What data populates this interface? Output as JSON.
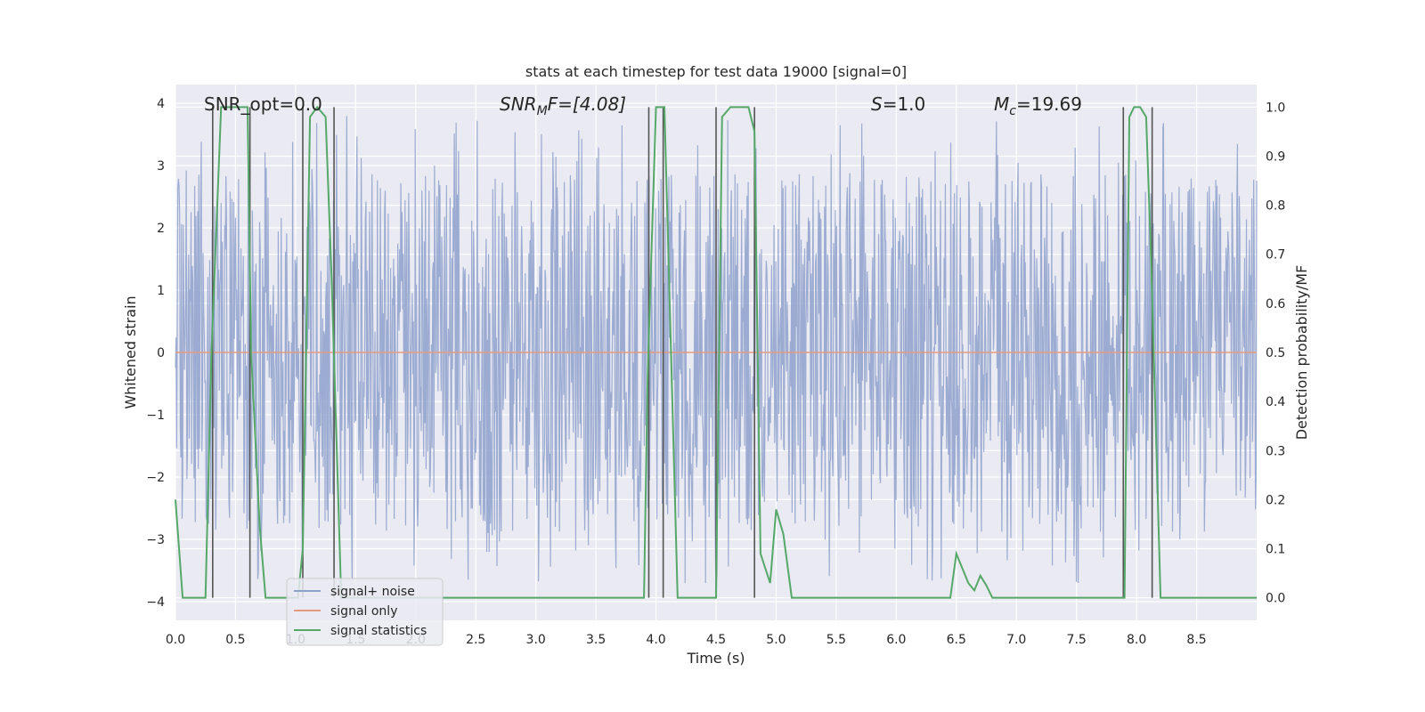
{
  "chart_data": {
    "type": "line",
    "title": "stats at each timestep for test data 19000 [signal=0]",
    "xlabel": "Time (s)",
    "ylabel": "Whitened strain",
    "ylabel_right": "Detection probability/MF",
    "xlim": [
      0.0,
      9.0
    ],
    "ylim": [
      -4.3,
      4.3
    ],
    "ylim_right": [
      -0.046,
      1.046
    ],
    "xticks": [
      0.0,
      0.5,
      1.0,
      1.5,
      2.0,
      2.5,
      3.0,
      3.5,
      4.0,
      4.5,
      5.0,
      5.5,
      6.0,
      6.5,
      7.0,
      7.5,
      8.0,
      8.5
    ],
    "xtick_labels": [
      "0.0",
      "0.5",
      "1.0",
      "1.5",
      "2.0",
      "2.5",
      "3.0",
      "3.5",
      "4.0",
      "4.5",
      "5.0",
      "5.5",
      "6.0",
      "6.5",
      "7.0",
      "7.5",
      "8.0",
      "8.5"
    ],
    "yticks": [
      4,
      3,
      2,
      1,
      0,
      -1,
      -2,
      -3,
      -4
    ],
    "ytick_labels": [
      "4",
      "3",
      "2",
      "1",
      "0",
      "−1",
      "−2",
      "−3",
      "−4"
    ],
    "yticks_right": [
      1.0,
      0.9,
      0.8,
      0.7,
      0.6,
      0.5,
      0.4,
      0.3,
      0.2,
      0.1,
      0.0
    ],
    "ytick_labels_right": [
      "1.0",
      "0.9",
      "0.8",
      "0.7",
      "0.6",
      "0.5",
      "0.4",
      "0.3",
      "0.2",
      "0.1",
      "0.0"
    ],
    "annotations": {
      "snr_opt": "SNR_opt=0.0",
      "snr_mf_prefix": "SNR",
      "snr_mf_sub": "M",
      "snr_mf_suffix": "F=[4.08]",
      "s_prefix": "S",
      "s_suffix": "=1.0",
      "mc_prefix": "M",
      "mc_sub": "c",
      "mc_suffix": "=19.69"
    },
    "legend": {
      "position": "lower-left",
      "entries": [
        "signal+ noise",
        "signal only",
        "signal statistics"
      ]
    },
    "series": [
      {
        "name": "signal+ noise",
        "axis": "left",
        "color": "#8da0cb",
        "style": "noise",
        "n_samples": 1800,
        "core_amplitude": 1.6,
        "max_amplitude": 3.8,
        "min_value": -3.7
      },
      {
        "name": "signal only",
        "axis": "left",
        "color": "#e59a7f",
        "x": [
          0.0,
          9.0
        ],
        "y": [
          0.0,
          0.0
        ]
      },
      {
        "name": "signal statistics",
        "axis": "right",
        "color": "#55a868",
        "x": [
          0.0,
          0.06,
          0.25,
          0.3,
          0.38,
          0.42,
          0.5,
          0.6,
          0.63,
          0.7,
          0.75,
          1.02,
          1.06,
          1.12,
          1.18,
          1.25,
          1.3,
          1.38,
          1.45,
          3.9,
          3.93,
          4.0,
          4.07,
          4.18,
          4.5,
          4.55,
          4.62,
          4.7,
          4.77,
          4.82,
          4.87,
          4.95,
          5.0,
          5.06,
          5.13,
          6.2,
          6.3,
          6.45,
          6.5,
          6.6,
          6.65,
          6.7,
          6.75,
          6.8,
          6.85,
          7.9,
          7.94,
          7.98,
          8.03,
          8.08,
          8.12,
          8.2,
          9.0
        ],
        "y": [
          0.2,
          0.0,
          0.0,
          0.5,
          1.0,
          1.0,
          1.0,
          1.0,
          0.5,
          0.15,
          0.0,
          0.0,
          0.1,
          0.98,
          1.0,
          0.98,
          0.65,
          0.0,
          0.0,
          0.0,
          0.45,
          1.0,
          1.0,
          0.0,
          0.0,
          0.98,
          1.0,
          1.0,
          1.0,
          0.95,
          0.09,
          0.03,
          0.18,
          0.13,
          0.0,
          0.0,
          0.0,
          0.0,
          0.09,
          0.03,
          0.015,
          0.045,
          0.025,
          0.0,
          0.0,
          0.0,
          0.98,
          1.0,
          1.0,
          0.98,
          0.7,
          0.0,
          0.0
        ]
      }
    ],
    "vertical_lines": {
      "color": "#555555",
      "x": [
        0.31,
        0.62,
        1.06,
        1.32,
        3.94,
        4.06,
        4.5,
        4.82,
        7.89,
        8.13
      ]
    }
  }
}
